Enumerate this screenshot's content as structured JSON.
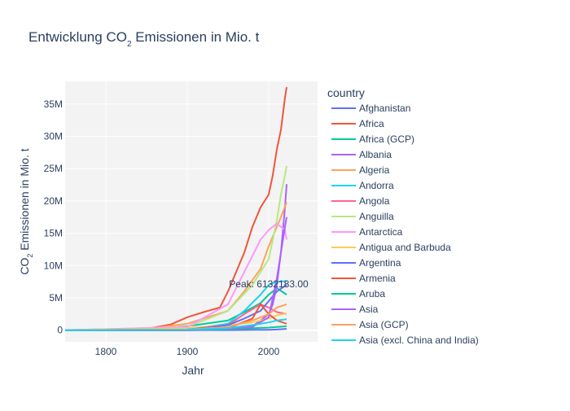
{
  "chart_data": {
    "type": "line",
    "title": {
      "main": "Entwicklung CO",
      "sub": "2",
      "rest": " Emissionen in Mio. t"
    },
    "xlabel": "Jahr",
    "ylabel": {
      "pre": "CO",
      "sub": "2",
      "rest": " Emissionen in Mio. t"
    },
    "xlim": [
      1750,
      2060
    ],
    "ylim": [
      -1800000,
      38500000
    ],
    "x_ticks": [
      1800,
      1900,
      2000
    ],
    "y_ticks": [
      {
        "value": 0,
        "label": "0"
      },
      {
        "value": 5000000,
        "label": "5M"
      },
      {
        "value": 10000000,
        "label": "10M"
      },
      {
        "value": 15000000,
        "label": "15M"
      },
      {
        "value": 20000000,
        "label": "20M"
      },
      {
        "value": 25000000,
        "label": "25M"
      },
      {
        "value": 30000000,
        "label": "30M"
      },
      {
        "value": 35000000,
        "label": "35M"
      }
    ],
    "grid": true,
    "legend_title": "country",
    "legend_position": "right",
    "annotation": {
      "text": "Peak: 6132183.00",
      "x": 2000,
      "y": 6132183
    },
    "series": [
      {
        "name": "Afghanistan",
        "color": "#636efa",
        "x": [
          1750,
          1850,
          1900,
          1950,
          1980,
          2000,
          2010,
          2022
        ],
        "y": [
          0,
          0,
          0,
          10000,
          60000,
          50000,
          100000,
          200000
        ]
      },
      {
        "name": "Africa",
        "color": "#EF553B",
        "x": [
          1750,
          1850,
          1880,
          1900,
          1920,
          1940,
          1950,
          1960,
          1970,
          1980,
          1990,
          2000,
          2005,
          2010,
          2015,
          2018,
          2020,
          2022
        ],
        "y": [
          0,
          200000,
          900000,
          2000000,
          2800000,
          3500000,
          6000000,
          9000000,
          12000000,
          16000000,
          19000000,
          21000000,
          24000000,
          28000000,
          31000000,
          34000000,
          36000000,
          37600000
        ]
      },
      {
        "name": "Africa (GCP)",
        "color": "#00cc96",
        "x": [
          1750,
          1850,
          1900,
          1950,
          1970,
          1990,
          2000,
          2010,
          2022
        ],
        "y": [
          0,
          100000,
          600000,
          1500000,
          2800000,
          4200000,
          5500000,
          6500000,
          5500000
        ]
      },
      {
        "name": "Albania",
        "color": "#ab63fa",
        "x": [
          1750,
          1900,
          1950,
          1980,
          1990,
          2000,
          2005,
          2010,
          2015,
          2020,
          2022
        ],
        "y": [
          0,
          0,
          100000,
          600000,
          1500000,
          2500000,
          4000000,
          7000000,
          12000000,
          19000000,
          22600000
        ]
      },
      {
        "name": "Algeria",
        "color": "#FFA15A",
        "x": [
          1750,
          1850,
          1900,
          1950,
          1970,
          1990,
          2000,
          2010,
          2015,
          2022
        ],
        "y": [
          0,
          200000,
          1000000,
          3000000,
          6000000,
          9500000,
          13000000,
          16000000,
          17500000,
          19800000
        ]
      },
      {
        "name": "Andorra",
        "color": "#19d3f3",
        "x": [
          1750,
          1900,
          1950,
          1970,
          1990,
          2000,
          2010,
          2022
        ],
        "y": [
          0,
          100000,
          1000000,
          3000000,
          5500000,
          7000000,
          7500000,
          7600000
        ]
      },
      {
        "name": "Angola",
        "color": "#FF6692",
        "x": [
          1750,
          1900,
          1950,
          1970,
          1990,
          2000,
          2010,
          2022
        ],
        "y": [
          0,
          100000,
          800000,
          2500000,
          4000000,
          3500000,
          2800000,
          2500000
        ]
      },
      {
        "name": "Anguilla",
        "color": "#B6E880",
        "x": [
          1750,
          1900,
          1950,
          1980,
          2000,
          2010,
          2015,
          2020,
          2022
        ],
        "y": [
          0,
          500000,
          3000000,
          7000000,
          11000000,
          17000000,
          21000000,
          24000000,
          25400000
        ]
      },
      {
        "name": "Antarctica",
        "color": "#FF97FF",
        "x": [
          1750,
          1900,
          1950,
          1970,
          1990,
          2000,
          2010,
          2020,
          2022
        ],
        "y": [
          0,
          500000,
          4000000,
          9000000,
          14000000,
          15500000,
          16500000,
          15500000,
          14000000
        ]
      },
      {
        "name": "Antigua and Barbuda",
        "color": "#FECB52",
        "x": [
          1750,
          1900,
          1950,
          1980,
          2000,
          2010,
          2022
        ],
        "y": [
          0,
          300000,
          800000,
          1200000,
          1800000,
          2300000,
          2600000
        ]
      },
      {
        "name": "Argentina",
        "color": "#636efa",
        "x": [
          1750,
          1900,
          1950,
          1970,
          1990,
          2000,
          2010,
          2022
        ],
        "y": [
          0,
          100000,
          800000,
          1800000,
          3000000,
          4500000,
          6000000,
          7000000
        ]
      },
      {
        "name": "Armenia",
        "color": "#EF553B",
        "x": [
          1750,
          1900,
          1950,
          1980,
          1990,
          2000,
          2010,
          2022
        ],
        "y": [
          0,
          0,
          300000,
          1800000,
          4000000,
          2500000,
          1500000,
          1000000
        ]
      },
      {
        "name": "Aruba",
        "color": "#00cc96",
        "x": [
          1750,
          1900,
          1950,
          1980,
          2000,
          2010,
          2022
        ],
        "y": [
          0,
          0,
          100000,
          300000,
          400000,
          500000,
          600000
        ]
      },
      {
        "name": "Asia",
        "color": "#ab63fa",
        "x": [
          1750,
          1850,
          1900,
          1950,
          1980,
          2000,
          2010,
          2020,
          2022
        ],
        "y": [
          0,
          0,
          0,
          200000,
          500000,
          2000000,
          8000000,
          16000000,
          17500000
        ]
      },
      {
        "name": "Asia (GCP)",
        "color": "#FFA15A",
        "x": [
          1750,
          1900,
          1950,
          1980,
          2000,
          2010,
          2022
        ],
        "y": [
          0,
          100000,
          500000,
          1500000,
          2500000,
          3500000,
          4000000
        ]
      },
      {
        "name": "Asia (excl. China and India)",
        "color": "#19d3f3",
        "x": [
          1750,
          1900,
          1950,
          1980,
          2000,
          2010,
          2022
        ],
        "y": [
          0,
          50000,
          300000,
          800000,
          1200000,
          1500000,
          1700000
        ]
      }
    ]
  }
}
